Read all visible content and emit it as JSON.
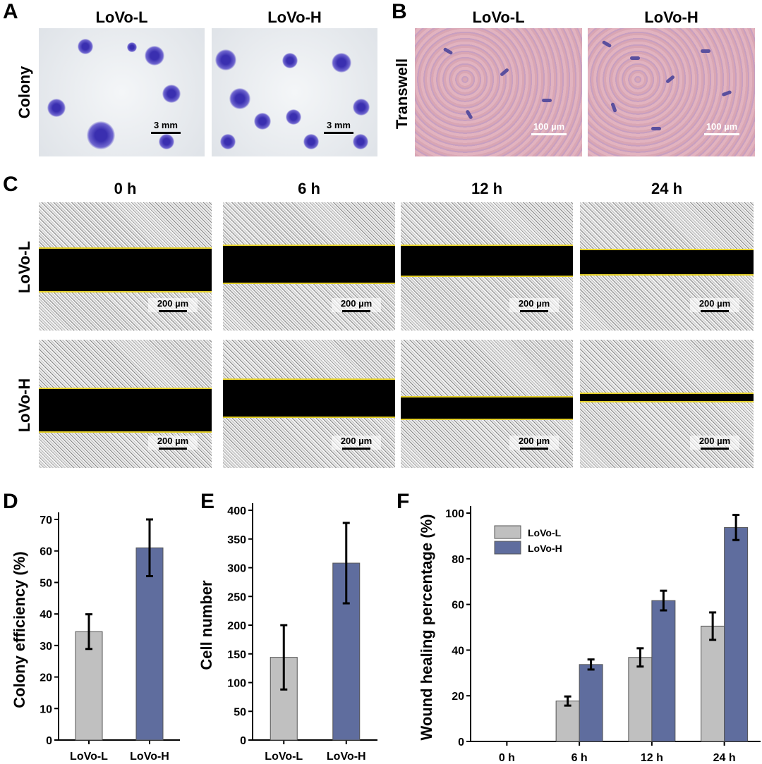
{
  "panels": {
    "A": "A",
    "B": "B",
    "C": "C",
    "D": "D",
    "E": "E",
    "F": "F"
  },
  "panel_a": {
    "row_label": "Colony",
    "columns": [
      "LoVo-L",
      "LoVo-H"
    ],
    "scale": "3 mm"
  },
  "panel_b": {
    "row_label": "Transwell",
    "columns": [
      "LoVo-L",
      "LoVo-H"
    ],
    "scale": "100 µm"
  },
  "panel_c": {
    "columns": [
      "0 h",
      "6 h",
      "12 h",
      "24 h"
    ],
    "rows": [
      "LoVo-L",
      "LoVo-H"
    ],
    "scale": "200 µm"
  },
  "colors": {
    "lovo_l": "#c0c0c0",
    "lovo_h": "#5f6d9e"
  },
  "chart_data": [
    {
      "type": "bar",
      "panel": "D",
      "categories": [
        "LoVo-L",
        "LoVo-H"
      ],
      "values": [
        34.4,
        61
      ],
      "errors": [
        5.5,
        9
      ],
      "xlabel": "",
      "ylabel": "Colony efficiency (%)",
      "ylim": [
        0,
        70
      ],
      "yticks": [
        0,
        10,
        20,
        30,
        40,
        50,
        60,
        70
      ],
      "grid": false
    },
    {
      "type": "bar",
      "panel": "E",
      "categories": [
        "LoVo-L",
        "LoVo-H"
      ],
      "values": [
        144,
        308
      ],
      "errors": [
        56,
        70
      ],
      "xlabel": "",
      "ylabel": "Cell number",
      "ylim": [
        0,
        400
      ],
      "yticks": [
        0,
        50,
        100,
        150,
        200,
        250,
        300,
        350,
        400
      ],
      "grid": false
    },
    {
      "type": "bar",
      "panel": "F",
      "categories": [
        "0 h",
        "6 h",
        "12 h",
        "24 h"
      ],
      "series": [
        {
          "name": "LoVo-L",
          "values": [
            0,
            17.7,
            36.8,
            50.5
          ],
          "errors": [
            0,
            2,
            4,
            6
          ]
        },
        {
          "name": "LoVo-H",
          "values": [
            0,
            33.7,
            61.7,
            93.7
          ],
          "errors": [
            0,
            2.2,
            4.3,
            5.5
          ]
        }
      ],
      "xlabel": "",
      "ylabel": "Wound healing percentage (%)",
      "ylim": [
        0,
        100
      ],
      "yticks": [
        0,
        20,
        40,
        60,
        80,
        100
      ],
      "legend": "top-left",
      "grid": false
    }
  ]
}
